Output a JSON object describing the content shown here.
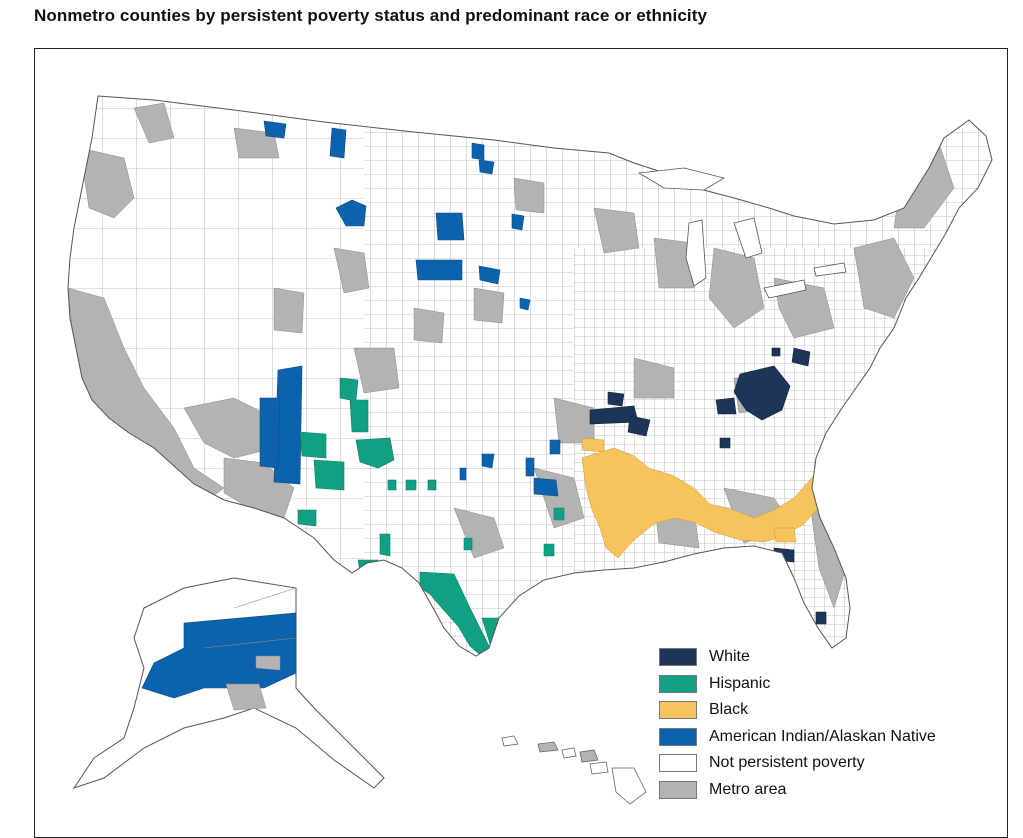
{
  "title": "Nonmetro counties by persistent poverty status and predominant race or ethnicity",
  "legend": [
    {
      "label": "White",
      "color": "#1d3557"
    },
    {
      "label": "Hispanic",
      "color": "#12a083"
    },
    {
      "label": "Black",
      "color": "#f7c35c"
    },
    {
      "label": "American Indian/Alaskan Native",
      "color": "#0d62ad"
    },
    {
      "label": "Not persistent poverty",
      "color": "#ffffff"
    },
    {
      "label": "Metro area",
      "color": "#b3b3b3"
    }
  ]
}
